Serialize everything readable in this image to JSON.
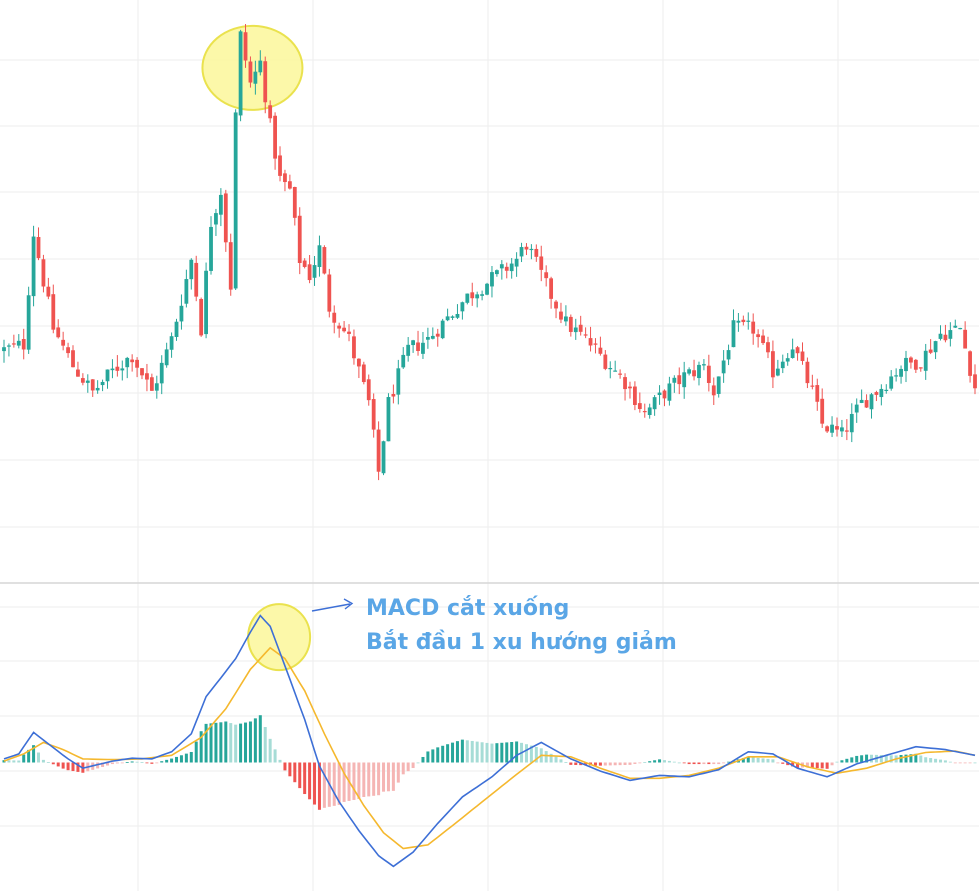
{
  "annotation": {
    "line1": "MACD cắt xuống",
    "line2": "Bắt đầu 1 xu hướng giảm"
  },
  "colors": {
    "up": "#26a69a",
    "down": "#ef5350",
    "macd_line": "#3d6fd6",
    "signal_line": "#f5b82e",
    "highlight_fill": "#fbf79a",
    "highlight_stroke": "#eae24e",
    "grid": "#eeeeee",
    "arrow": "#3d6fd6"
  },
  "chart_data": [
    {
      "type": "candlestick",
      "title": "",
      "grid": true,
      "ylim": [
        0,
        100
      ],
      "close_path": [
        [
          0,
          38
        ],
        [
          4,
          39
        ],
        [
          6,
          60
        ],
        [
          10,
          42
        ],
        [
          14,
          35
        ],
        [
          18,
          30
        ],
        [
          22,
          34
        ],
        [
          26,
          37
        ],
        [
          30,
          30
        ],
        [
          34,
          40
        ],
        [
          38,
          55
        ],
        [
          40,
          42
        ],
        [
          42,
          62
        ],
        [
          44,
          68
        ],
        [
          46,
          50
        ],
        [
          47,
          82
        ],
        [
          48,
          97
        ],
        [
          50,
          88
        ],
        [
          52,
          92
        ],
        [
          54,
          80
        ],
        [
          56,
          70
        ],
        [
          58,
          68
        ],
        [
          60,
          55
        ],
        [
          62,
          52
        ],
        [
          64,
          57
        ],
        [
          66,
          46
        ],
        [
          70,
          40
        ],
        [
          74,
          28
        ],
        [
          76,
          15
        ],
        [
          78,
          28
        ],
        [
          82,
          38
        ],
        [
          86,
          40
        ],
        [
          90,
          44
        ],
        [
          94,
          48
        ],
        [
          100,
          52
        ],
        [
          104,
          55
        ],
        [
          106,
          58
        ],
        [
          110,
          50
        ],
        [
          114,
          43
        ],
        [
          118,
          40
        ],
        [
          122,
          36
        ],
        [
          126,
          32
        ],
        [
          130,
          26
        ],
        [
          134,
          30
        ],
        [
          138,
          33
        ],
        [
          142,
          35
        ],
        [
          144,
          30
        ],
        [
          148,
          42
        ],
        [
          152,
          42
        ],
        [
          156,
          34
        ],
        [
          160,
          39
        ],
        [
          164,
          30
        ],
        [
          166,
          24
        ],
        [
          170,
          22
        ],
        [
          174,
          28
        ],
        [
          178,
          31
        ],
        [
          182,
          35
        ],
        [
          186,
          36
        ],
        [
          190,
          41
        ],
        [
          194,
          42
        ],
        [
          197,
          31
        ]
      ],
      "highlight": {
        "x": 50,
        "y": 91,
        "label": "peak"
      }
    },
    {
      "type": "macd",
      "title": "",
      "grid": true,
      "ylim": [
        -1.5,
        2.1
      ],
      "macd_path": [
        [
          0,
          0.05
        ],
        [
          3,
          0.12
        ],
        [
          6,
          0.42
        ],
        [
          9,
          0.26
        ],
        [
          13,
          0.05
        ],
        [
          16,
          -0.08
        ],
        [
          22,
          0.02
        ],
        [
          26,
          0.06
        ],
        [
          30,
          0.05
        ],
        [
          34,
          0.15
        ],
        [
          38,
          0.4
        ],
        [
          41,
          0.92
        ],
        [
          44,
          1.18
        ],
        [
          47,
          1.45
        ],
        [
          50,
          1.82
        ],
        [
          52,
          2.05
        ],
        [
          54,
          1.9
        ],
        [
          57,
          1.35
        ],
        [
          61,
          0.6
        ],
        [
          64,
          -0.05
        ],
        [
          68,
          -0.55
        ],
        [
          72,
          -0.95
        ],
        [
          76,
          -1.3
        ],
        [
          79,
          -1.45
        ],
        [
          83,
          -1.25
        ],
        [
          88,
          -0.85
        ],
        [
          93,
          -0.48
        ],
        [
          99,
          -0.2
        ],
        [
          104,
          0.1
        ],
        [
          109,
          0.28
        ],
        [
          115,
          0.05
        ],
        [
          121,
          -0.12
        ],
        [
          127,
          -0.25
        ],
        [
          133,
          -0.18
        ],
        [
          139,
          -0.2
        ],
        [
          145,
          -0.1
        ],
        [
          151,
          0.15
        ],
        [
          156,
          0.12
        ],
        [
          161,
          -0.08
        ],
        [
          167,
          -0.2
        ],
        [
          173,
          -0.02
        ],
        [
          179,
          0.1
        ],
        [
          185,
          0.22
        ],
        [
          191,
          0.18
        ],
        [
          197,
          0.1
        ]
      ],
      "signal_path": [
        [
          0,
          0.02
        ],
        [
          4,
          0.12
        ],
        [
          8,
          0.28
        ],
        [
          12,
          0.18
        ],
        [
          16,
          0.05
        ],
        [
          22,
          0.04
        ],
        [
          28,
          0.05
        ],
        [
          34,
          0.1
        ],
        [
          40,
          0.35
        ],
        [
          45,
          0.75
        ],
        [
          50,
          1.3
        ],
        [
          54,
          1.6
        ],
        [
          57,
          1.45
        ],
        [
          61,
          1.0
        ],
        [
          65,
          0.4
        ],
        [
          69,
          -0.15
        ],
        [
          73,
          -0.6
        ],
        [
          77,
          -0.98
        ],
        [
          81,
          -1.2
        ],
        [
          86,
          -1.15
        ],
        [
          91,
          -0.88
        ],
        [
          97,
          -0.55
        ],
        [
          103,
          -0.22
        ],
        [
          109,
          0.1
        ],
        [
          115,
          0.08
        ],
        [
          121,
          -0.08
        ],
        [
          127,
          -0.22
        ],
        [
          133,
          -0.22
        ],
        [
          139,
          -0.18
        ],
        [
          145,
          -0.08
        ],
        [
          151,
          0.08
        ],
        [
          157,
          0.08
        ],
        [
          163,
          -0.06
        ],
        [
          169,
          -0.15
        ],
        [
          175,
          -0.08
        ],
        [
          181,
          0.05
        ],
        [
          187,
          0.14
        ],
        [
          193,
          0.16
        ],
        [
          197,
          0.1
        ]
      ],
      "highlight": {
        "x": 55,
        "y": 1.75,
        "label": "crossover"
      }
    }
  ]
}
